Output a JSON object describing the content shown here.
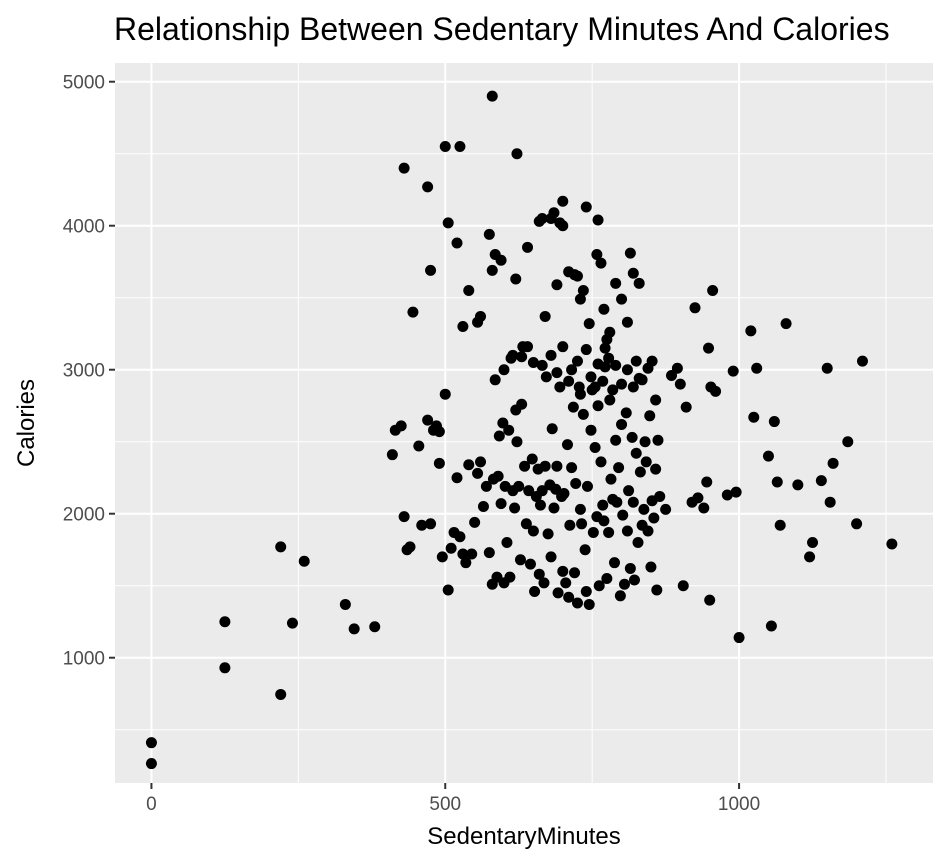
{
  "chart_data": {
    "type": "scatter",
    "title": "Relationship Between Sedentary Minutes And Calories",
    "xlabel": "SedentaryMinutes",
    "ylabel": "Calories",
    "xlim": [
      -62,
      1330
    ],
    "ylim": [
      130,
      5130
    ],
    "x_ticks": [
      0,
      500,
      1000
    ],
    "x_tick_labels": [
      "0",
      "500",
      "1000"
    ],
    "y_ticks": [
      1000,
      2000,
      3000,
      4000,
      5000
    ],
    "y_tick_labels": [
      "1000",
      "2000",
      "3000",
      "4000",
      "5000"
    ],
    "grid": true,
    "colors": {
      "panel": "#ebebeb",
      "grid": "#ffffff",
      "point": "#000000",
      "tick_label": "#4d4d4d"
    },
    "points": [
      [
        0,
        265
      ],
      [
        0,
        410
      ],
      [
        125,
        930
      ],
      [
        125,
        1250
      ],
      [
        220,
        745
      ],
      [
        220,
        1770
      ],
      [
        240,
        1240
      ],
      [
        260,
        1670
      ],
      [
        330,
        1370
      ],
      [
        345,
        1200
      ],
      [
        380,
        1215
      ],
      [
        410,
        2410
      ],
      [
        415,
        2580
      ],
      [
        425,
        2610
      ],
      [
        430,
        1980
      ],
      [
        435,
        1750
      ],
      [
        440,
        1770
      ],
      [
        455,
        2470
      ],
      [
        460,
        1920
      ],
      [
        470,
        2650
      ],
      [
        475,
        1930
      ],
      [
        480,
        2580
      ],
      [
        485,
        2610
      ],
      [
        490,
        2350
      ],
      [
        495,
        1700
      ],
      [
        500,
        2830
      ],
      [
        505,
        1470
      ],
      [
        510,
        1760
      ],
      [
        515,
        1870
      ],
      [
        520,
        2250
      ],
      [
        525,
        1840
      ],
      [
        530,
        1720
      ],
      [
        535,
        1660
      ],
      [
        540,
        2340
      ],
      [
        545,
        1720
      ],
      [
        550,
        1940
      ],
      [
        555,
        2280
      ],
      [
        560,
        2360
      ],
      [
        565,
        2050
      ],
      [
        570,
        2190
      ],
      [
        575,
        1730
      ],
      [
        580,
        1510
      ],
      [
        582,
        2240
      ],
      [
        585,
        2930
      ],
      [
        588,
        1560
      ],
      [
        590,
        2260
      ],
      [
        592,
        2540
      ],
      [
        595,
        2070
      ],
      [
        598,
        2630
      ],
      [
        600,
        1520
      ],
      [
        602,
        2190
      ],
      [
        605,
        1800
      ],
      [
        608,
        2580
      ],
      [
        610,
        1560
      ],
      [
        612,
        3080
      ],
      [
        615,
        2160
      ],
      [
        618,
        2040
      ],
      [
        620,
        2720
      ],
      [
        622,
        2500
      ],
      [
        625,
        2190
      ],
      [
        628,
        1680
      ],
      [
        630,
        2760
      ],
      [
        632,
        3160
      ],
      [
        635,
        2330
      ],
      [
        638,
        1930
      ],
      [
        640,
        3160
      ],
      [
        642,
        2160
      ],
      [
        645,
        1650
      ],
      [
        648,
        2380
      ],
      [
        650,
        1880
      ],
      [
        652,
        1460
      ],
      [
        655,
        2120
      ],
      [
        658,
        2310
      ],
      [
        660,
        1580
      ],
      [
        662,
        2060
      ],
      [
        665,
        2160
      ],
      [
        668,
        1520
      ],
      [
        670,
        2330
      ],
      [
        672,
        2950
      ],
      [
        675,
        1860
      ],
      [
        678,
        2200
      ],
      [
        680,
        1700
      ],
      [
        682,
        2590
      ],
      [
        685,
        2040
      ],
      [
        688,
        2170
      ],
      [
        690,
        2330
      ],
      [
        692,
        1450
      ],
      [
        695,
        2880
      ],
      [
        698,
        2120
      ],
      [
        700,
        1600
      ],
      [
        702,
        2140
      ],
      [
        705,
        1520
      ],
      [
        708,
        2480
      ],
      [
        710,
        1420
      ],
      [
        712,
        1920
      ],
      [
        715,
        2320
      ],
      [
        718,
        2740
      ],
      [
        720,
        1590
      ],
      [
        722,
        2210
      ],
      [
        725,
        1380
      ],
      [
        728,
        2880
      ],
      [
        730,
        2030
      ],
      [
        732,
        1930
      ],
      [
        735,
        2690
      ],
      [
        738,
        1750
      ],
      [
        740,
        1460
      ],
      [
        742,
        2190
      ],
      [
        745,
        1370
      ],
      [
        748,
        2580
      ],
      [
        750,
        2860
      ],
      [
        752,
        1870
      ],
      [
        755,
        2460
      ],
      [
        758,
        1980
      ],
      [
        760,
        2750
      ],
      [
        762,
        1500
      ],
      [
        765,
        2360
      ],
      [
        768,
        2060
      ],
      [
        770,
        1950
      ],
      [
        772,
        3020
      ],
      [
        775,
        1550
      ],
      [
        778,
        1870
      ],
      [
        780,
        2790
      ],
      [
        782,
        2240
      ],
      [
        785,
        2100
      ],
      [
        788,
        1660
      ],
      [
        790,
        2510
      ],
      [
        792,
        2080
      ],
      [
        795,
        2320
      ],
      [
        798,
        1430
      ],
      [
        800,
        2620
      ],
      [
        802,
        1990
      ],
      [
        805,
        1510
      ],
      [
        808,
        2700
      ],
      [
        810,
        1880
      ],
      [
        812,
        2160
      ],
      [
        815,
        1620
      ],
      [
        818,
        2530
      ],
      [
        820,
        2080
      ],
      [
        822,
        1540
      ],
      [
        825,
        2420
      ],
      [
        828,
        1800
      ],
      [
        830,
        2940
      ],
      [
        832,
        2290
      ],
      [
        835,
        1920
      ],
      [
        838,
        2030
      ],
      [
        840,
        2500
      ],
      [
        842,
        2360
      ],
      [
        845,
        1880
      ],
      [
        848,
        2680
      ],
      [
        850,
        1630
      ],
      [
        852,
        2090
      ],
      [
        855,
        1970
      ],
      [
        858,
        2310
      ],
      [
        860,
        1470
      ],
      [
        862,
        2510
      ],
      [
        865,
        2120
      ],
      [
        600,
        3000
      ],
      [
        615,
        3100
      ],
      [
        630,
        3090
      ],
      [
        650,
        3050
      ],
      [
        665,
        3030
      ],
      [
        680,
        3100
      ],
      [
        690,
        2980
      ],
      [
        700,
        3160
      ],
      [
        710,
        2920
      ],
      [
        715,
        3000
      ],
      [
        725,
        3060
      ],
      [
        730,
        2830
      ],
      [
        740,
        3140
      ],
      [
        748,
        2950
      ],
      [
        755,
        2880
      ],
      [
        760,
        3040
      ],
      [
        768,
        2920
      ],
      [
        772,
        3150
      ],
      [
        778,
        3080
      ],
      [
        785,
        2860
      ],
      [
        790,
        3030
      ],
      [
        800,
        2900
      ],
      [
        810,
        3000
      ],
      [
        820,
        2880
      ],
      [
        825,
        3060
      ],
      [
        835,
        2930
      ],
      [
        845,
        3010
      ],
      [
        852,
        3060
      ],
      [
        858,
        2790
      ],
      [
        490,
        2570
      ],
      [
        505,
        4020
      ],
      [
        520,
        3880
      ],
      [
        530,
        3300
      ],
      [
        540,
        3550
      ],
      [
        555,
        3330
      ],
      [
        560,
        3370
      ],
      [
        575,
        3940
      ],
      [
        580,
        3690
      ],
      [
        585,
        3800
      ],
      [
        595,
        3760
      ],
      [
        620,
        3630
      ],
      [
        640,
        3850
      ],
      [
        660,
        4030
      ],
      [
        665,
        4050
      ],
      [
        670,
        3370
      ],
      [
        680,
        4050
      ],
      [
        685,
        4090
      ],
      [
        690,
        3590
      ],
      [
        695,
        4020
      ],
      [
        700,
        4170
      ],
      [
        710,
        3680
      ],
      [
        720,
        3660
      ],
      [
        725,
        3650
      ],
      [
        730,
        3490
      ],
      [
        735,
        3550
      ],
      [
        740,
        4130
      ],
      [
        745,
        3320
      ],
      [
        758,
        3800
      ],
      [
        765,
        3740
      ],
      [
        770,
        3420
      ],
      [
        775,
        3210
      ],
      [
        780,
        3260
      ],
      [
        790,
        3600
      ],
      [
        800,
        3490
      ],
      [
        810,
        3330
      ],
      [
        820,
        3670
      ],
      [
        830,
        3600
      ],
      [
        815,
        3810
      ],
      [
        760,
        4040
      ],
      [
        700,
        4000
      ],
      [
        430,
        4400
      ],
      [
        445,
        3400
      ],
      [
        470,
        4270
      ],
      [
        475,
        3690
      ],
      [
        500,
        4550
      ],
      [
        525,
        4550
      ],
      [
        580,
        4900
      ],
      [
        622,
        4500
      ],
      [
        875,
        2030
      ],
      [
        885,
        2960
      ],
      [
        895,
        3010
      ],
      [
        900,
        2900
      ],
      [
        905,
        1500
      ],
      [
        910,
        2740
      ],
      [
        920,
        2080
      ],
      [
        925,
        3430
      ],
      [
        930,
        2110
      ],
      [
        940,
        2040
      ],
      [
        945,
        2220
      ],
      [
        948,
        3150
      ],
      [
        950,
        1400
      ],
      [
        952,
        2880
      ],
      [
        955,
        3550
      ],
      [
        960,
        2850
      ],
      [
        980,
        2130
      ],
      [
        990,
        2990
      ],
      [
        995,
        2150
      ],
      [
        1000,
        1140
      ],
      [
        1020,
        3270
      ],
      [
        1025,
        2670
      ],
      [
        1030,
        3010
      ],
      [
        1050,
        2400
      ],
      [
        1055,
        1220
      ],
      [
        1060,
        2640
      ],
      [
        1065,
        2220
      ],
      [
        1070,
        1920
      ],
      [
        1080,
        3320
      ],
      [
        1100,
        2200
      ],
      [
        1120,
        1700
      ],
      [
        1125,
        1800
      ],
      [
        1140,
        2230
      ],
      [
        1150,
        3010
      ],
      [
        1155,
        2080
      ],
      [
        1160,
        2350
      ],
      [
        1185,
        2500
      ],
      [
        1200,
        1930
      ],
      [
        1210,
        3060
      ],
      [
        1260,
        1790
      ]
    ]
  }
}
